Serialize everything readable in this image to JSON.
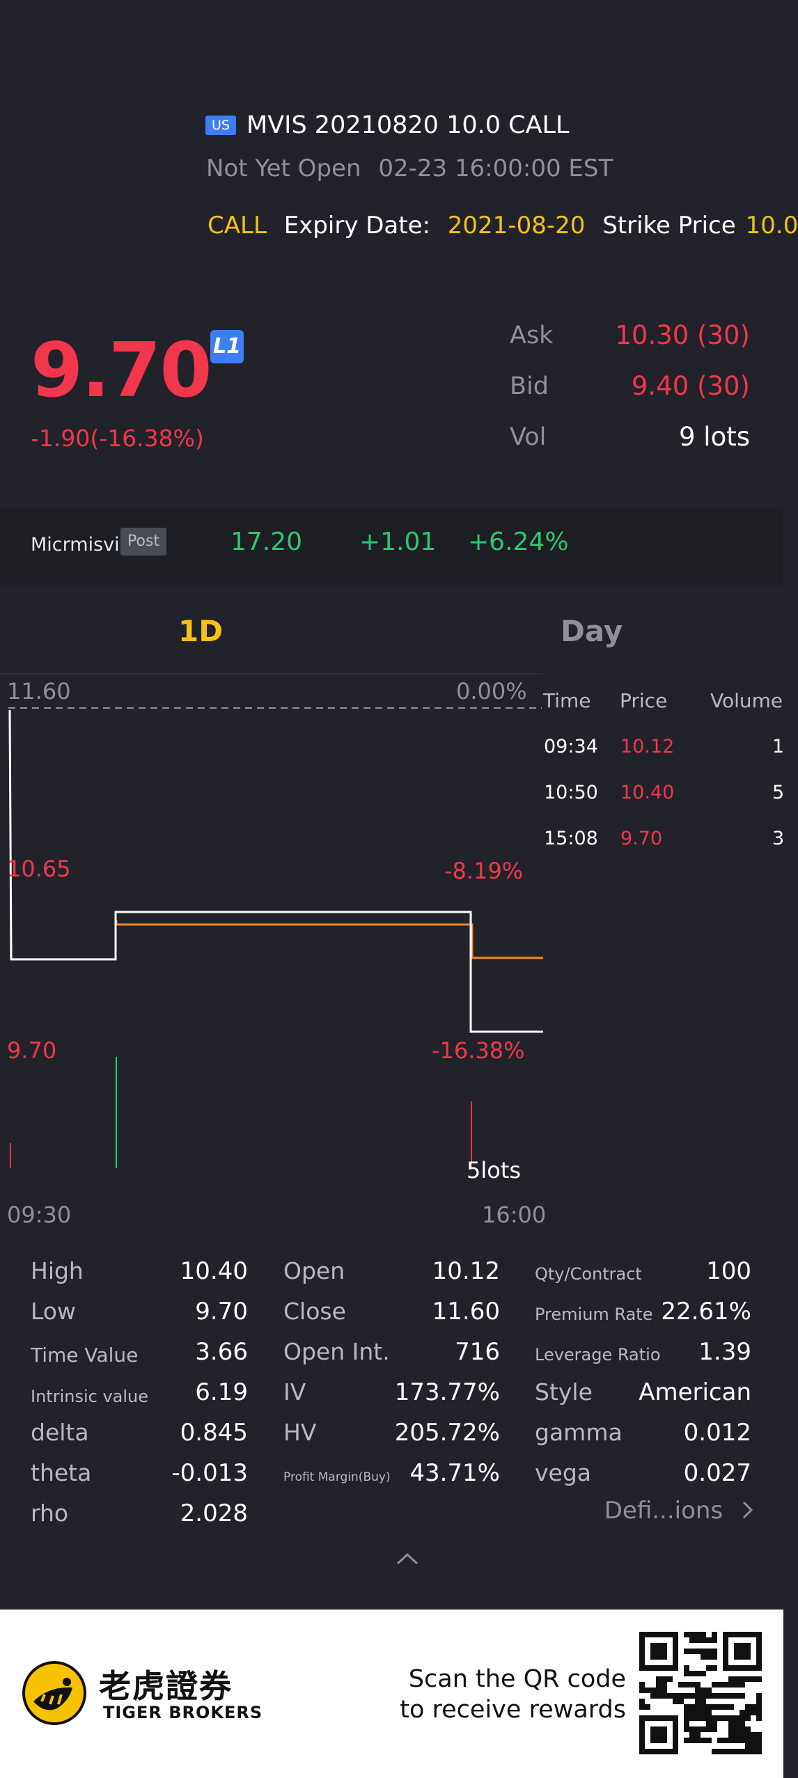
{
  "header": {
    "market_badge": "US",
    "title": "MVIS 20210820 10.0 CALL",
    "status": "Not Yet Open",
    "status_time": "02-23 16:00:00 EST",
    "type": "CALL",
    "expiry_label": "Expiry Date:",
    "expiry_value": "2021-08-20",
    "strike_label": "Strike Price",
    "strike_value": "10.0"
  },
  "quote": {
    "price": "9.70",
    "level_badge": "L1",
    "change": "-1.90(-16.38%)",
    "ask_label": "Ask",
    "ask_value": "10.30 (30)",
    "bid_label": "Bid",
    "bid_value": "9.40 (30)",
    "vol_label": "Vol",
    "vol_value": "9 lots"
  },
  "underlying": {
    "name": "Micrmisvis...",
    "session_badge": "Post",
    "price": "17.20",
    "change": "+1.01",
    "change_pct": "+6.24%"
  },
  "tabs": {
    "intraday": "1D",
    "day": "Day"
  },
  "chart": {
    "y_top": "11.60",
    "y_top_pct": "0.00%",
    "y_mid": "10.65",
    "y_mid_pct": "-8.19%",
    "y_bottom": "9.70",
    "y_bottom_pct": "-16.38%",
    "volume_label": "5lots",
    "x_start": "09:30",
    "x_end": "16:00"
  },
  "trades": {
    "headers": [
      "Time",
      "Price",
      "Volume"
    ],
    "rows": [
      {
        "time": "09:34",
        "price": "10.12",
        "volume": "1"
      },
      {
        "time": "10:50",
        "price": "10.40",
        "volume": "5"
      },
      {
        "time": "15:08",
        "price": "9.70",
        "volume": "3"
      }
    ]
  },
  "stats": {
    "col1": [
      {
        "label": "High",
        "value": "10.40"
      },
      {
        "label": "Low",
        "value": "9.70"
      },
      {
        "label": "Time Value",
        "value": "3.66"
      },
      {
        "label": "Intrinsic value",
        "value": "6.19"
      },
      {
        "label": "delta",
        "value": "0.845"
      },
      {
        "label": "theta",
        "value": "-0.013"
      },
      {
        "label": "rho",
        "value": "2.028"
      }
    ],
    "col2": [
      {
        "label": "Open",
        "value": "10.12"
      },
      {
        "label": "Close",
        "value": "11.60"
      },
      {
        "label": "Open Int.",
        "value": "716"
      },
      {
        "label": "IV",
        "value": "173.77%"
      },
      {
        "label": "HV",
        "value": "205.72%"
      },
      {
        "label": "Profit Margin(Buy)",
        "value": "43.71%"
      }
    ],
    "col3": [
      {
        "label": "Qty/Contract",
        "value": "100"
      },
      {
        "label": "Premium Rate",
        "value": "22.61%"
      },
      {
        "label": "Leverage Ratio",
        "value": "1.39"
      },
      {
        "label": "Style",
        "value": "American"
      },
      {
        "label": "gamma",
        "value": "0.012"
      },
      {
        "label": "vega",
        "value": "0.027"
      }
    ],
    "definitions_link": "Defi...ions"
  },
  "footer": {
    "brand_cn": "老虎證券",
    "brand_en": "TIGER BROKERS",
    "scan_line1": "Scan the QR code",
    "scan_line2": "to receive rewards"
  },
  "colors": {
    "background": "#22232a",
    "down": "#f2364c",
    "up": "#2fc771",
    "accent": "#f5c21b",
    "badge": "#3d7ff2",
    "avg_line": "#f08a24"
  },
  "icons": {
    "level": "l1-badge-icon",
    "expand": "caret-up-icon",
    "link": "chevron-right-icon",
    "logo": "tiger-logo-icon",
    "qr": "qr-code-icon"
  }
}
